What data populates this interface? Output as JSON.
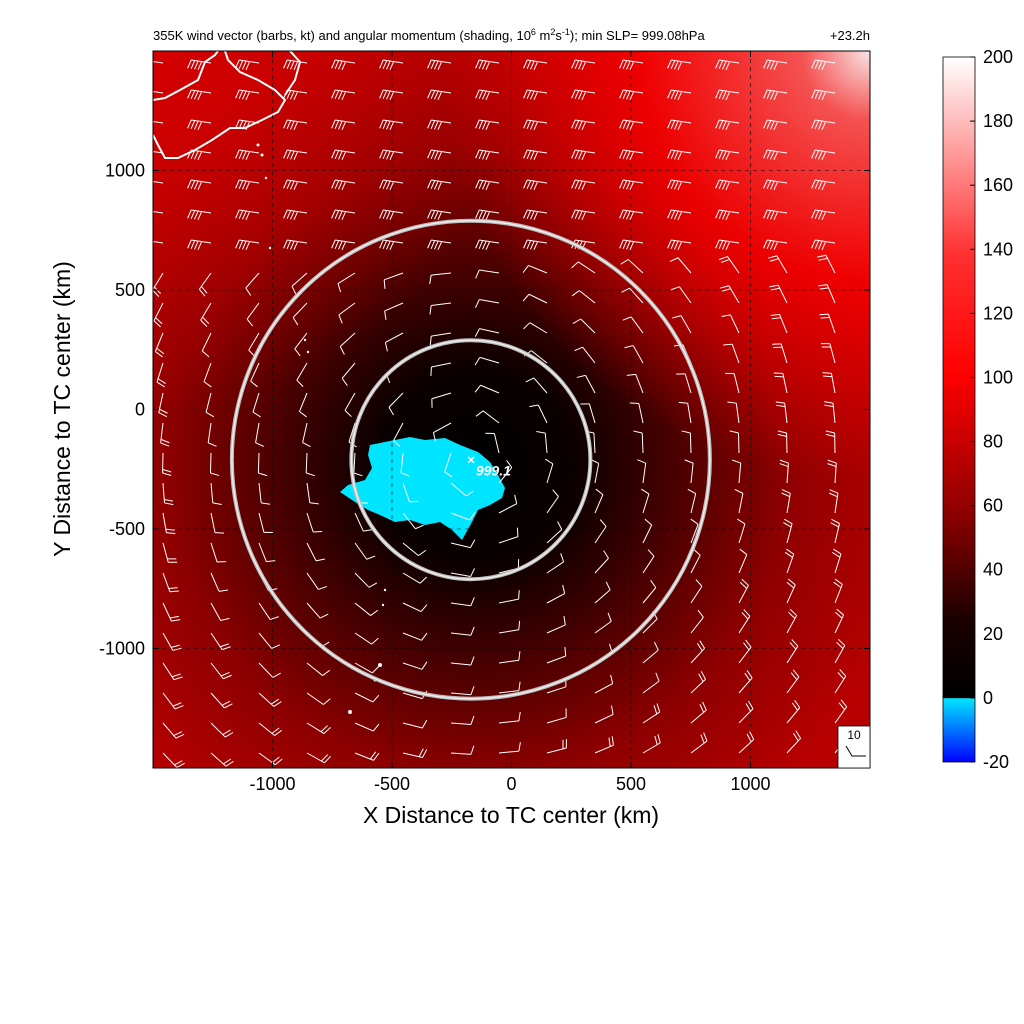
{
  "chart_data": {
    "type": "heatmap",
    "title": "355K wind vector (barbs, kt) and angular momentum (shading, 10",
    "title_sup1": "6",
    "title_mid": " m",
    "title_sup2": "2",
    "title_mid2": "s",
    "title_sup3": "-1",
    "title_end": "); min SLP= 999.08hPa",
    "time_label": "+23.2h",
    "xlabel": "X Distance to TC center (km)",
    "ylabel": "Y Distance to TC center (km)",
    "xlim": [
      -1500,
      1500
    ],
    "ylim": [
      -1500,
      1500
    ],
    "xticks": [
      -1000,
      -500,
      0,
      500,
      1000
    ],
    "xtick_labels": [
      "-1000",
      "-500",
      "0",
      "500",
      "1000"
    ],
    "yticks": [
      1000,
      500,
      0,
      -500,
      -1000
    ],
    "ytick_labels": [
      "1000",
      "500",
      "0",
      "-500",
      "-1000"
    ],
    "grid": true,
    "colorbar": {
      "min": -20,
      "max": 200,
      "ticks": [
        200,
        180,
        160,
        140,
        120,
        100,
        80,
        60,
        40,
        20,
        0,
        -20
      ],
      "tick_labels": [
        "200",
        "180",
        "160",
        "140",
        "120",
        "100",
        "80",
        "60",
        "40",
        "20",
        "0",
        "-20"
      ],
      "colors": {
        "neg_low": "#0000ff",
        "neg_high": "#00e5ff",
        "zero": "#000000",
        "mid": "#cc0000",
        "high": "#ff0000",
        "top": "#ffffff"
      }
    },
    "center_marker": {
      "x": -170,
      "y": -210,
      "label": "999.1"
    },
    "range_rings_km": [
      500,
      1000
    ],
    "ring_center": {
      "x": -170,
      "y": -210
    },
    "reference_barb": {
      "label": "10",
      "speed_kt": 10
    }
  }
}
